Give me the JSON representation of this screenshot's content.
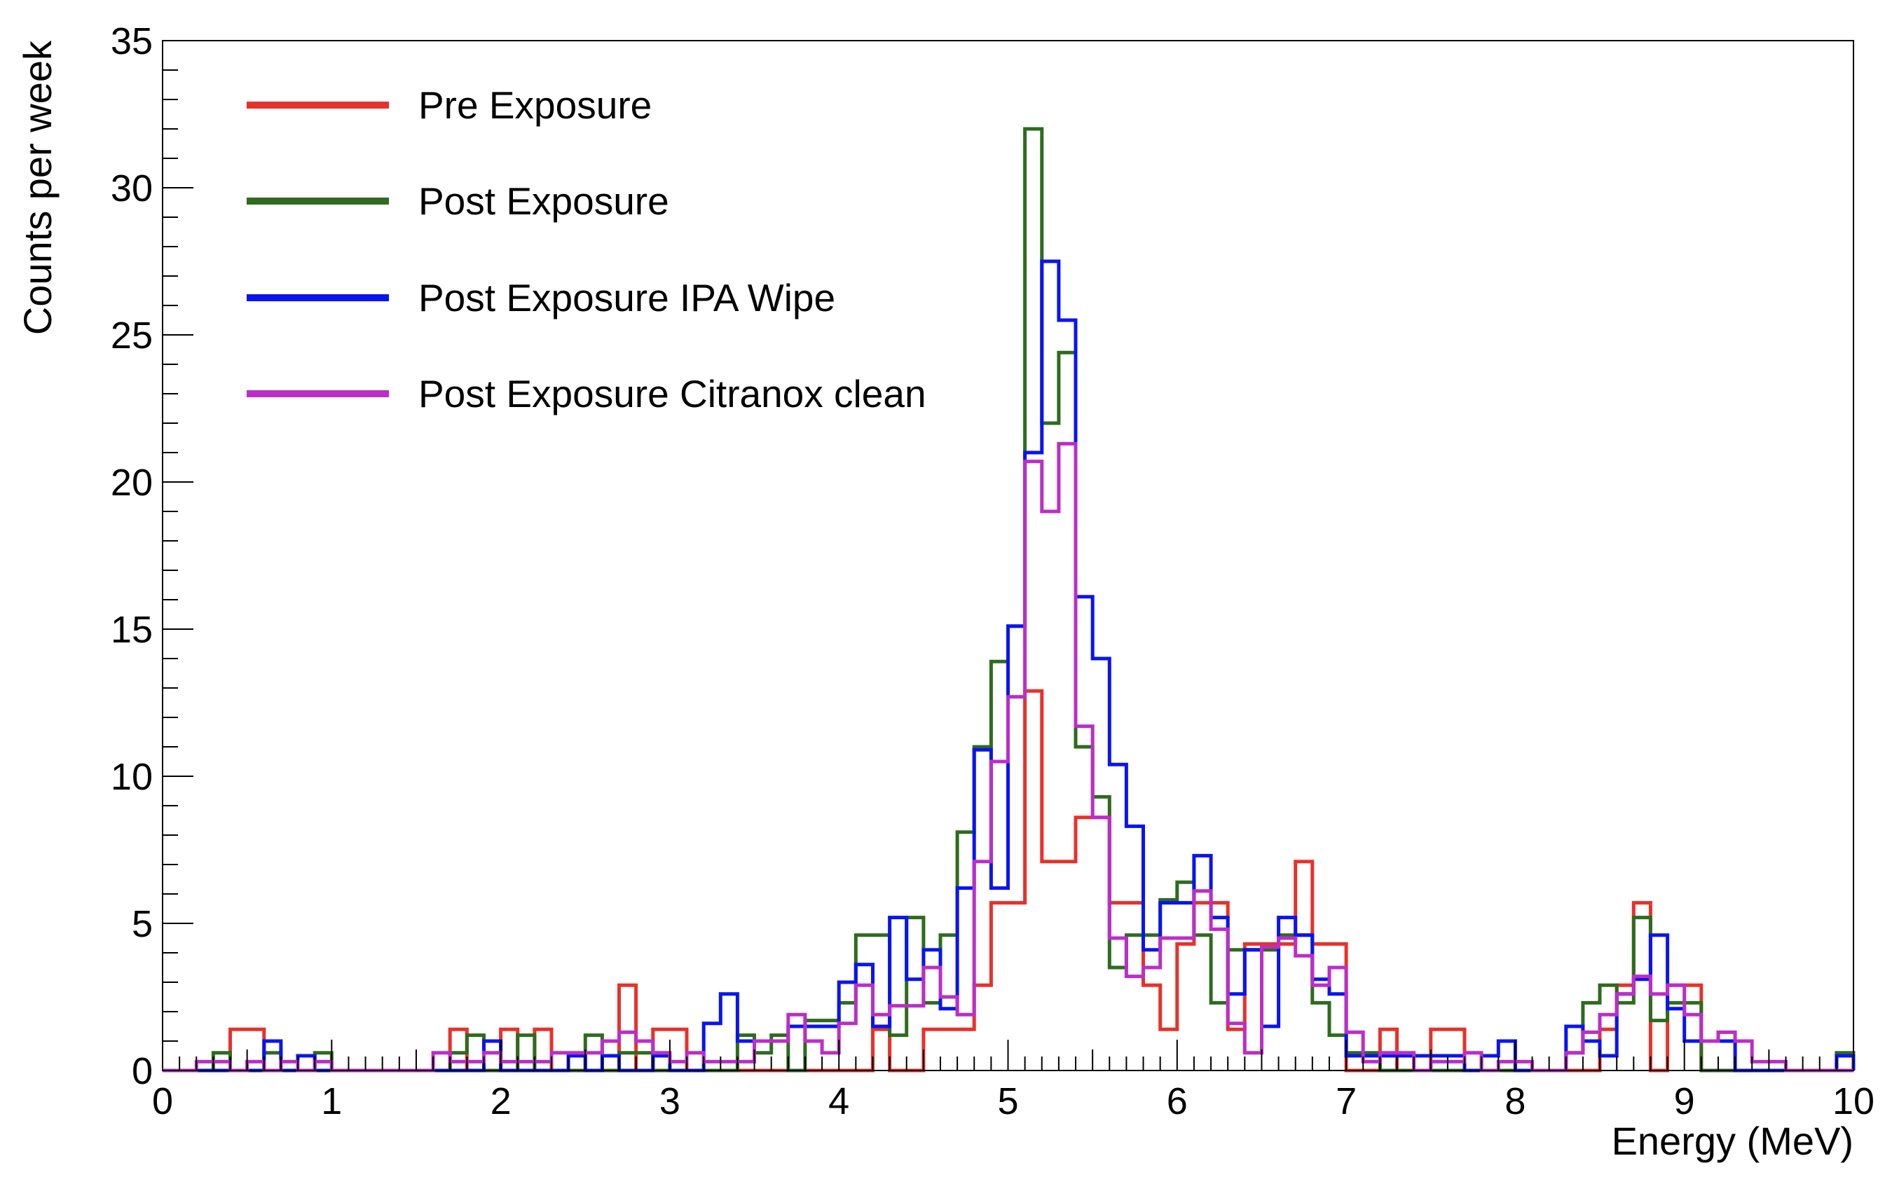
{
  "chart_data": {
    "type": "histogram",
    "xlabel": "Energy (MeV)",
    "ylabel": "Counts per week",
    "xlim": [
      0,
      10
    ],
    "ylim": [
      0,
      35
    ],
    "bin_width": 0.1,
    "x_ticks": [
      "0",
      "1",
      "2",
      "3",
      "4",
      "5",
      "6",
      "7",
      "8",
      "9",
      "10"
    ],
    "y_ticks": [
      "0",
      "5",
      "10",
      "15",
      "20",
      "25",
      "30",
      "35"
    ],
    "grid": false,
    "legend_position": "top-left",
    "series": [
      {
        "name": "Pre Exposure",
        "color": "#e8312a",
        "values": [
          0,
          0,
          0,
          0,
          1.4,
          1.4,
          0,
          0,
          0,
          0,
          0,
          0,
          0,
          0,
          0,
          0,
          0,
          1.4,
          0,
          0,
          1.4,
          0,
          1.4,
          0,
          0,
          0,
          0,
          2.9,
          0,
          1.4,
          1.4,
          0,
          0,
          0,
          0,
          0,
          0,
          0,
          0,
          0,
          0,
          0,
          1.4,
          0,
          0,
          1.4,
          1.4,
          1.4,
          2.9,
          5.7,
          5.7,
          12.9,
          7.1,
          7.1,
          8.6,
          8.6,
          5.7,
          5.7,
          2.9,
          1.4,
          4.3,
          5.7,
          5.7,
          1.4,
          4.3,
          4.3,
          4.3,
          7.1,
          4.3,
          4.3,
          0,
          0,
          1.4,
          0,
          0,
          1.4,
          1.4,
          0,
          0,
          0,
          0,
          0,
          0,
          0,
          0,
          1.4,
          2.9,
          5.7,
          0,
          2.9,
          2.9,
          0,
          0,
          0,
          0,
          0,
          0,
          0,
          0,
          0
        ]
      },
      {
        "name": "Post Exposure",
        "color": "#2e6b1e",
        "values": [
          0,
          0,
          0,
          0.6,
          0,
          0,
          0.6,
          0,
          0,
          0.6,
          0,
          0,
          0,
          0,
          0,
          0,
          0,
          0.6,
          1.2,
          0,
          0,
          1.2,
          0,
          0,
          0,
          1.2,
          0,
          0.6,
          0.6,
          0,
          0,
          0,
          0,
          0,
          1.2,
          0.6,
          1.2,
          0,
          1.7,
          1.7,
          2.3,
          4.6,
          4.6,
          1.2,
          5.2,
          2.3,
          4.6,
          8.1,
          11,
          13.9,
          15.1,
          32,
          22,
          24.4,
          11,
          9.3,
          3.5,
          4.6,
          4.6,
          5.8,
          6.4,
          4.6,
          2.3,
          4.1,
          4.1,
          4.1,
          4.6,
          4.6,
          2.3,
          1.2,
          0.6,
          0.6,
          0,
          0,
          0,
          0,
          0,
          0,
          0,
          0,
          0,
          0,
          0,
          0.6,
          2.3,
          2.9,
          2.3,
          5.2,
          1.7,
          2.3,
          2.3,
          0,
          0,
          0,
          0,
          0,
          0,
          0,
          0,
          0.6
        ]
      },
      {
        "name": "Post Exposure IPA Wipe",
        "color": "#0a14f0",
        "values": [
          0,
          0,
          0,
          0,
          0,
          0,
          1,
          0,
          0.5,
          0,
          0,
          0,
          0,
          0,
          0,
          0,
          0,
          0,
          0,
          1,
          0,
          0,
          0,
          0,
          0.5,
          0,
          0.5,
          0,
          0,
          0.5,
          0,
          0,
          1.6,
          2.6,
          1,
          1,
          1,
          1.5,
          1.5,
          1.5,
          3,
          3.6,
          1.5,
          5.2,
          3.1,
          4.1,
          2.1,
          6.2,
          10.9,
          6.2,
          15.1,
          21,
          27.5,
          25.5,
          16.1,
          14,
          10.4,
          8.3,
          4.1,
          5.7,
          5.7,
          7.3,
          5.2,
          2.6,
          4.1,
          1.5,
          5.2,
          4.6,
          3.1,
          2.6,
          0.5,
          0.5,
          0.5,
          0.5,
          0.5,
          0.5,
          0.5,
          0,
          0.5,
          1,
          0,
          0,
          0,
          1.5,
          1,
          0.5,
          2.6,
          3.1,
          4.6,
          2.1,
          1,
          1,
          1,
          0,
          0,
          0,
          0,
          0,
          0,
          0.5
        ]
      },
      {
        "name": "Post Exposure Citranox clean",
        "color": "#bb2ec7",
        "values": [
          0,
          0,
          0.3,
          0.3,
          0,
          0.3,
          0,
          0.3,
          0,
          0.3,
          0,
          0,
          0,
          0,
          0,
          0,
          0.6,
          0.3,
          0.3,
          0.6,
          0.3,
          0.3,
          0.3,
          0.6,
          0.6,
          0.6,
          1,
          1.3,
          1,
          0.6,
          0.3,
          0.6,
          0.3,
          0.3,
          0.3,
          1,
          1,
          1.9,
          1,
          0.6,
          1.6,
          2.9,
          1.9,
          2.2,
          2.2,
          3.5,
          2.5,
          1.9,
          7.1,
          10.5,
          12.7,
          20.7,
          19,
          21.3,
          11.7,
          8.6,
          4.5,
          3.2,
          3.5,
          4.5,
          4.5,
          6.1,
          4.8,
          1.6,
          0.6,
          4.2,
          4.5,
          3.9,
          2.9,
          3.5,
          1.3,
          0.3,
          0.6,
          0.6,
          0,
          0.3,
          0.3,
          0.6,
          0,
          0.3,
          0.3,
          0,
          0,
          0.6,
          1.3,
          1.9,
          2.6,
          3.2,
          2.6,
          2.9,
          1.9,
          1,
          1.3,
          1,
          0.3,
          0.3,
          0,
          0,
          0,
          0
        ]
      }
    ]
  }
}
